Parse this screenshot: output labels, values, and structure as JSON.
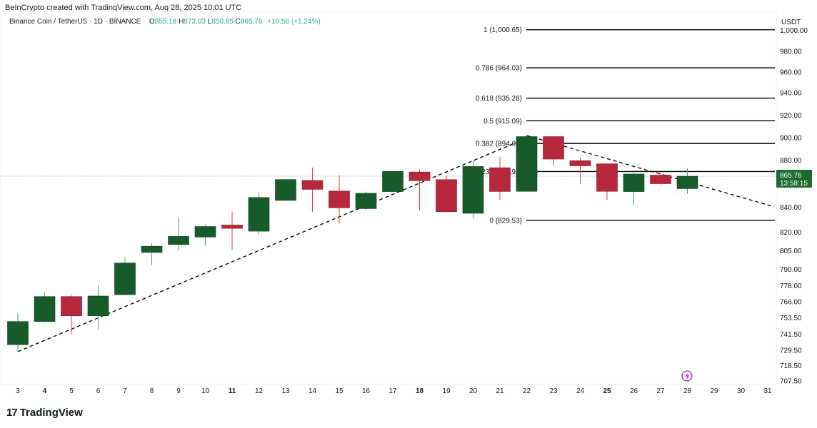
{
  "header": {
    "attribution": "BeInCrypto created with TradingView.com, Aug 28, 2025 10:01 UTC",
    "symbol_line": "Binance Coin / TetherUS · 1D · BINANCE",
    "ohlc": {
      "o_label": "O",
      "o_value": "855.18",
      "h_label": "H",
      "h_value": "873.03",
      "l_label": "L",
      "l_value": "850.85",
      "c_label": "C",
      "c_value": "865.76",
      "change": "+10.58 (+1.24%)"
    },
    "currency": "USDT"
  },
  "footer": {
    "logo_mark": "17",
    "brand": "TradingView"
  },
  "colors": {
    "up": "#185b2b",
    "down": "#b8283c",
    "up_wick": "#22ab94",
    "down_wick": "#f23645",
    "price_tag": "#1b6a30"
  },
  "chart_data": {
    "type": "candlestick",
    "x_tick_labels": [
      {
        "label": "3",
        "bold": false
      },
      {
        "label": "4",
        "bold": true
      },
      {
        "label": "5",
        "bold": false
      },
      {
        "label": "6",
        "bold": false
      },
      {
        "label": "7",
        "bold": false
      },
      {
        "label": "8",
        "bold": false
      },
      {
        "label": "9",
        "bold": false
      },
      {
        "label": "10",
        "bold": false
      },
      {
        "label": "11",
        "bold": true
      },
      {
        "label": "12",
        "bold": false
      },
      {
        "label": "13",
        "bold": false
      },
      {
        "label": "14",
        "bold": false
      },
      {
        "label": "15",
        "bold": false
      },
      {
        "label": "16",
        "bold": false
      },
      {
        "label": "17",
        "bold": false
      },
      {
        "label": "18",
        "bold": true
      },
      {
        "label": "19",
        "bold": false
      },
      {
        "label": "20",
        "bold": false
      },
      {
        "label": "21",
        "bold": false
      },
      {
        "label": "22",
        "bold": false
      },
      {
        "label": "23",
        "bold": false
      },
      {
        "label": "24",
        "bold": false
      },
      {
        "label": "25",
        "bold": true
      },
      {
        "label": "26",
        "bold": false
      },
      {
        "label": "27",
        "bold": false
      },
      {
        "label": "28",
        "bold": false
      },
      {
        "label": "29",
        "bold": false
      },
      {
        "label": "30",
        "bold": false
      },
      {
        "label": "31",
        "bold": false
      }
    ],
    "y_tick_labels": [
      "1,000.00",
      "980.00",
      "960.00",
      "940.00",
      "920.00",
      "900.00",
      "880.00",
      "860.00",
      "840.00",
      "820.00",
      "805.00",
      "790.00",
      "778.00",
      "766.00",
      "753.50",
      "741.50",
      "729.50",
      "718.50",
      "707.50"
    ],
    "candles": [
      {
        "day": 3,
        "o": 733.6,
        "h": 757.0,
        "l": 729.0,
        "c": 750.8
      },
      {
        "day": 4,
        "o": 750.8,
        "h": 773.0,
        "l": 750.0,
        "c": 769.8
      },
      {
        "day": 5,
        "o": 769.8,
        "h": 771.0,
        "l": 741.5,
        "c": 755.1
      },
      {
        "day": 6,
        "o": 755.1,
        "h": 778.0,
        "l": 745.0,
        "c": 770.2
      },
      {
        "day": 7,
        "o": 771.2,
        "h": 799.8,
        "l": 771.2,
        "c": 795.1
      },
      {
        "day": 8,
        "o": 803.6,
        "h": 811.0,
        "l": 793.6,
        "c": 808.6
      },
      {
        "day": 9,
        "o": 810.0,
        "h": 832.0,
        "l": 805.0,
        "c": 816.5
      },
      {
        "day": 10,
        "o": 816.0,
        "h": 826.0,
        "l": 809.2,
        "c": 824.5
      },
      {
        "day": 11,
        "o": 825.7,
        "h": 836.6,
        "l": 805.8,
        "c": 823.0
      },
      {
        "day": 12,
        "o": 820.7,
        "h": 852.2,
        "l": 817.5,
        "c": 848.0
      },
      {
        "day": 13,
        "o": 845.6,
        "h": 863.0,
        "l": 845.6,
        "c": 862.8
      },
      {
        "day": 14,
        "o": 862.0,
        "h": 873.5,
        "l": 836.2,
        "c": 854.6
      },
      {
        "day": 15,
        "o": 853.2,
        "h": 866.5,
        "l": 826.9,
        "c": 839.6
      },
      {
        "day": 16,
        "o": 839.0,
        "h": 852.8,
        "l": 838.0,
        "c": 851.4
      },
      {
        "day": 17,
        "o": 852.8,
        "h": 869.0,
        "l": 852.8,
        "c": 870.0
      },
      {
        "day": 18,
        "o": 869.5,
        "h": 871.8,
        "l": 837.1,
        "c": 861.8
      },
      {
        "day": 19,
        "o": 862.7,
        "h": 866.0,
        "l": 836.5,
        "c": 836.5
      },
      {
        "day": 20,
        "o": 835.2,
        "h": 880.0,
        "l": 831.0,
        "c": 874.4
      },
      {
        "day": 21,
        "o": 873.3,
        "h": 883.0,
        "l": 846.0,
        "c": 852.9
      },
      {
        "day": 22,
        "o": 853.0,
        "h": 902.0,
        "l": 853.0,
        "c": 901.0
      },
      {
        "day": 23,
        "o": 901.0,
        "h": 901.0,
        "l": 875.5,
        "c": 881.0
      },
      {
        "day": 24,
        "o": 879.6,
        "h": 882.5,
        "l": 859.0,
        "c": 875.0
      },
      {
        "day": 25,
        "o": 876.8,
        "h": 876.8,
        "l": 846.2,
        "c": 853.0
      },
      {
        "day": 26,
        "o": 852.8,
        "h": 869.0,
        "l": 842.0,
        "c": 867.7
      },
      {
        "day": 27,
        "o": 866.7,
        "h": 869.0,
        "l": 858.0,
        "c": 859.2
      },
      {
        "day": 28,
        "o": 855.18,
        "h": 873.03,
        "l": 850.85,
        "c": 865.76
      }
    ],
    "fib_levels": [
      {
        "ratio": "1",
        "price": 1000.65,
        "label": "1 (1,000.65)"
      },
      {
        "ratio": "0.786",
        "price": 964.03,
        "label": "0.786 (964.03)"
      },
      {
        "ratio": "0.618",
        "price": 935.28,
        "label": "0.618 (935.28)"
      },
      {
        "ratio": "0.5",
        "price": 915.09,
        "label": "0.5 (915.09)"
      },
      {
        "ratio": "0.382",
        "price": 894.9,
        "label": "0.382 (894.90)"
      },
      {
        "ratio": "0.236",
        "price": 869.93,
        "label": "0.236 (869.93)"
      },
      {
        "ratio": "0",
        "price": 829.53,
        "label": "0 (829.53)"
      }
    ],
    "trend_lines": [
      {
        "from": {
          "day": 3,
          "price": 728.5
        },
        "to": {
          "day": 22,
          "price": 902.0
        }
      },
      {
        "from": {
          "day": 22,
          "price": 902.0
        },
        "to": {
          "day": 31,
          "price": 840.5
        }
      }
    ],
    "last_price": {
      "value": "865.76",
      "countdown": "13:58:15"
    }
  }
}
